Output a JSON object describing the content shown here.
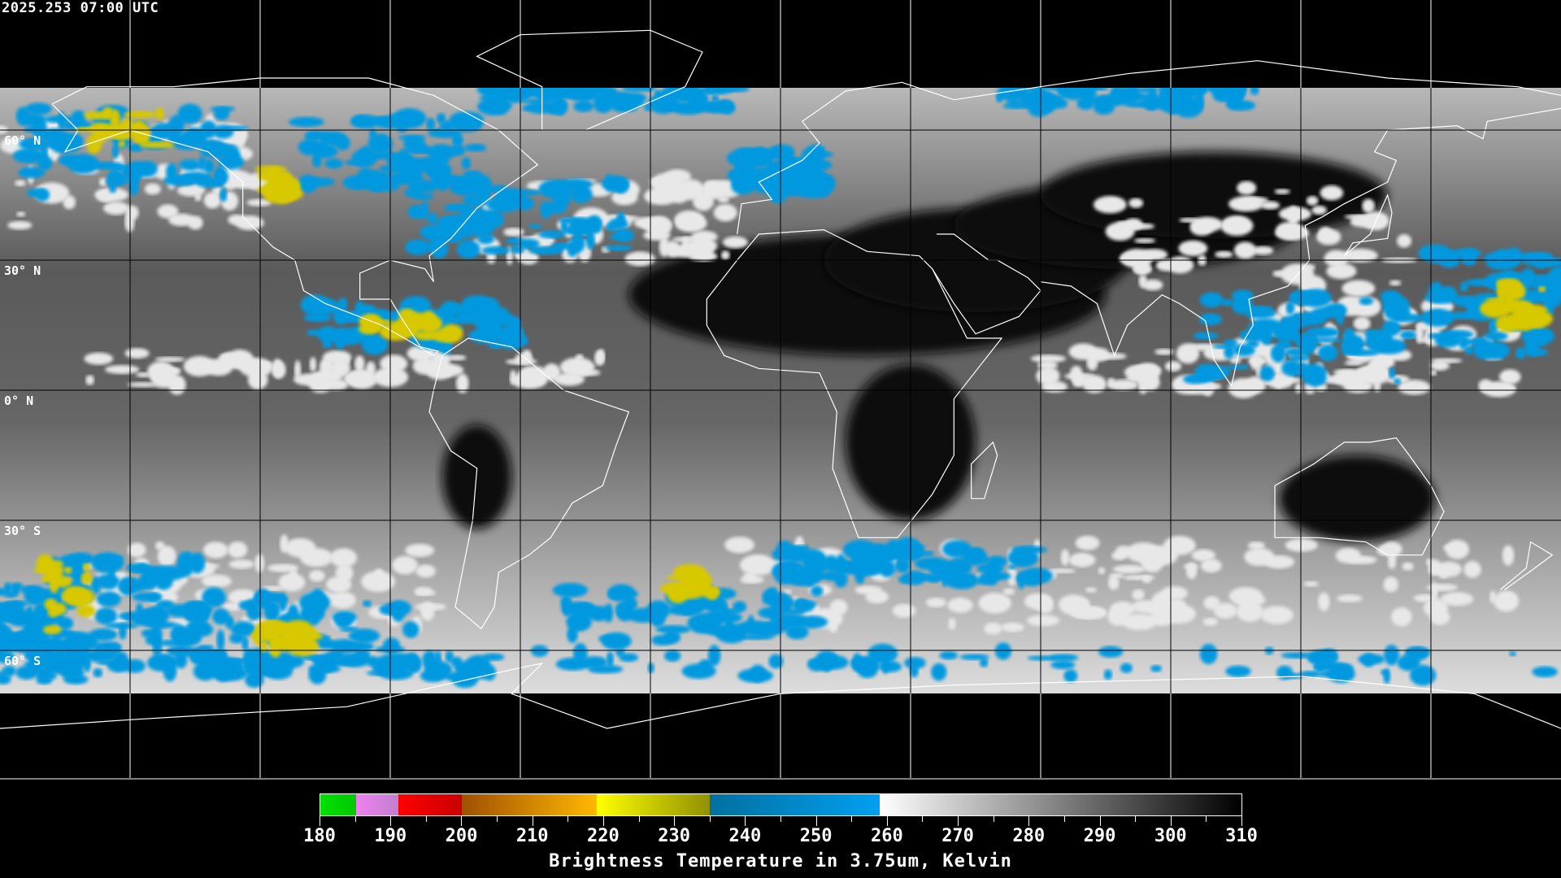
{
  "title": "2025.253 07:00 UTC",
  "latitude_labels": [
    "60° N",
    "30° N",
    "0° N",
    "30° S",
    "60° S"
  ],
  "colorbar": {
    "title": "Brightness Temperature in 3.75um, Kelvin",
    "min": 180,
    "max": 310,
    "tick_labels": [
      "180",
      "190",
      "200",
      "210",
      "220",
      "230",
      "240",
      "250",
      "260",
      "270",
      "280",
      "290",
      "300",
      "310"
    ],
    "segments": [
      {
        "from": 180,
        "to": 185,
        "colors": [
          "#00e000",
          "#00c800"
        ]
      },
      {
        "from": 185,
        "to": 191,
        "colors": [
          "#f080f0",
          "#c080d0"
        ]
      },
      {
        "from": 191,
        "to": 200,
        "colors": [
          "#ff0000",
          "#c80000"
        ]
      },
      {
        "from": 200,
        "to": 219,
        "colors": [
          "#a05000",
          "#ffb800"
        ]
      },
      {
        "from": 219,
        "to": 235,
        "colors": [
          "#ffff00",
          "#909000"
        ]
      },
      {
        "from": 235,
        "to": 259,
        "colors": [
          "#0070a0",
          "#00a0f0"
        ]
      },
      {
        "from": 259,
        "to": 310,
        "colors": [
          "#ffffff",
          "#000000"
        ]
      }
    ]
  },
  "colors": {
    "background": "#000000",
    "coastline": "#ffffff",
    "grid": "#000000",
    "cold_cloud": "#0099e0",
    "very_cold": "#d8c800"
  }
}
